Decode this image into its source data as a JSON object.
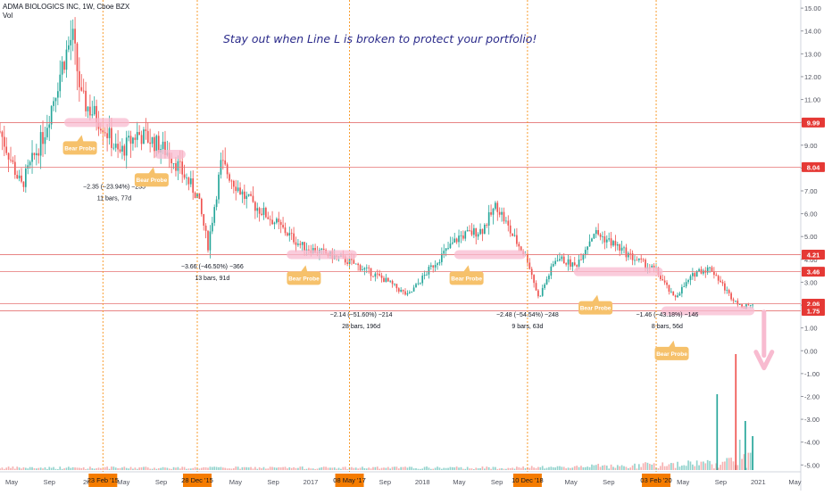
{
  "header": {
    "symbol_line": "ADMA BIOLOGICS INC, 1W, Cboe BZX",
    "vol_label": "Vol"
  },
  "annotation": "Stay out when Line L is broken to protect your portfolio!",
  "colors": {
    "up": "#26a69a",
    "down": "#ef5350",
    "hline": "#e57373",
    "vline": "#f7931a",
    "zone": "#f8bbd0",
    "tag": "#f6c16b",
    "date_tag": "#f57c00",
    "text": "#131722"
  },
  "chart_data": {
    "type": "candlestick",
    "title": "",
    "y_axis": {
      "min": -5.3,
      "max": 15.2,
      "ticks": [
        "15.00",
        "14.00",
        "13.00",
        "12.00",
        "11.00",
        "10.00",
        "9.00",
        "8.00",
        "7.00",
        "6.00",
        "5.00",
        "4.00",
        "3.00",
        "2.00",
        "1.00",
        "0.00",
        "-1.00",
        "-2.00",
        "-3.00",
        "-4.00",
        "-5.00"
      ]
    },
    "x_axis": {
      "start": "2014-03-24",
      "end": "2021-05-20",
      "ticks": [
        {
          "label": "May",
          "date": "2014-05-01"
        },
        {
          "label": "Sep",
          "date": "2014-09-01"
        },
        {
          "label": "20",
          "date": "2015-01-01"
        },
        {
          "label": "May",
          "date": "2015-05-01"
        },
        {
          "label": "Sep",
          "date": "2015-09-01"
        },
        {
          "label": "May",
          "date": "2016-05-01"
        },
        {
          "label": "Sep",
          "date": "2016-09-01"
        },
        {
          "label": "2017",
          "date": "2017-01-01"
        },
        {
          "label": "Sep",
          "date": "2017-09-01"
        },
        {
          "label": "2018",
          "date": "2018-01-01"
        },
        {
          "label": "May",
          "date": "2018-05-01"
        },
        {
          "label": "Sep",
          "date": "2018-09-01"
        },
        {
          "label": "May",
          "date": "2019-05-01"
        },
        {
          "label": "Sep",
          "date": "2019-09-01"
        },
        {
          "label": "May",
          "date": "2020-05-01"
        },
        {
          "label": "Sep",
          "date": "2020-09-01"
        },
        {
          "label": "2021",
          "date": "2021-01-01"
        },
        {
          "label": "May",
          "date": "2021-05-01"
        }
      ],
      "date_tags": [
        {
          "label": "23 Feb '15",
          "date": "2015-02-23"
        },
        {
          "label": "28 Dec '15",
          "date": "2015-12-28"
        },
        {
          "label": "08 May '17",
          "date": "2017-05-08"
        },
        {
          "label": "10 Dec '18",
          "date": "2018-12-10"
        },
        {
          "label": "03 Feb '20",
          "date": "2020-02-03"
        }
      ]
    },
    "price_levels": [
      {
        "label": "9.99",
        "value": 9.99
      },
      {
        "label": "8.04",
        "value": 8.04
      },
      {
        "label": "4.21",
        "value": 4.21
      },
      {
        "label": "3.46",
        "value": 3.46
      },
      {
        "label": "2.06",
        "value": 2.06
      },
      {
        "label": "1.75",
        "value": 1.75
      }
    ],
    "series": [
      {
        "name": "",
        "close_path": [
          {
            "date": "2014-03-24",
            "value": 9.6
          },
          {
            "date": "2014-06-01",
            "value": 7.2
          },
          {
            "date": "2014-08-15",
            "value": 9.5
          },
          {
            "date": "2014-10-15",
            "value": 12.6
          },
          {
            "date": "2014-11-15",
            "value": 13.8
          },
          {
            "date": "2014-12-15",
            "value": 11.0
          },
          {
            "date": "2015-02-23",
            "value": 9.9
          },
          {
            "date": "2015-04-15",
            "value": 8.6
          },
          {
            "date": "2015-06-15",
            "value": 9.5
          },
          {
            "date": "2015-08-01",
            "value": 9.2
          },
          {
            "date": "2015-10-01",
            "value": 8.6
          },
          {
            "date": "2015-12-28",
            "value": 6.8
          },
          {
            "date": "2016-02-01",
            "value": 4.6
          },
          {
            "date": "2016-03-15",
            "value": 8.2
          },
          {
            "date": "2016-06-01",
            "value": 6.7
          },
          {
            "date": "2016-09-01",
            "value": 5.7
          },
          {
            "date": "2016-12-01",
            "value": 4.6
          },
          {
            "date": "2017-05-08",
            "value": 3.9
          },
          {
            "date": "2017-09-01",
            "value": 3.1
          },
          {
            "date": "2017-11-15",
            "value": 2.4
          },
          {
            "date": "2018-02-01",
            "value": 3.7
          },
          {
            "date": "2018-05-01",
            "value": 5.0
          },
          {
            "date": "2018-07-15",
            "value": 5.3
          },
          {
            "date": "2018-09-01",
            "value": 6.4
          },
          {
            "date": "2018-10-15",
            "value": 5.2
          },
          {
            "date": "2018-12-10",
            "value": 4.0
          },
          {
            "date": "2019-01-15",
            "value": 2.3
          },
          {
            "date": "2019-03-15",
            "value": 4.1
          },
          {
            "date": "2019-05-15",
            "value": 3.7
          },
          {
            "date": "2019-07-15",
            "value": 5.2
          },
          {
            "date": "2019-09-15",
            "value": 4.7
          },
          {
            "date": "2019-11-15",
            "value": 4.1
          },
          {
            "date": "2020-02-03",
            "value": 3.5
          },
          {
            "date": "2020-04-01",
            "value": 2.3
          },
          {
            "date": "2020-06-15",
            "value": 3.5
          },
          {
            "date": "2020-08-01",
            "value": 3.6
          },
          {
            "date": "2020-10-01",
            "value": 2.4
          },
          {
            "date": "2020-11-15",
            "value": 1.9
          },
          {
            "date": "2020-12-20",
            "value": 2.1
          }
        ]
      }
    ],
    "bear_probes": [
      {
        "label": "Bear Probe",
        "date": "2014-12-10",
        "value": 8.9
      },
      {
        "label": "Bear Probe",
        "date": "2015-08-01",
        "value": 7.5
      },
      {
        "label": "Bear Probe",
        "date": "2016-12-10",
        "value": 3.2
      },
      {
        "label": "Bear Probe",
        "date": "2018-05-25",
        "value": 3.2
      },
      {
        "label": "Bear Probe",
        "date": "2019-07-20",
        "value": 1.9
      },
      {
        "label": "Bear Probe",
        "date": "2020-03-25",
        "value": -0.1
      }
    ],
    "zones": [
      {
        "from": "2014-10-20",
        "to": "2015-05-20",
        "value": 9.99
      },
      {
        "from": "2015-08-10",
        "to": "2015-11-20",
        "value": 8.6
      },
      {
        "from": "2016-10-15",
        "to": "2017-06-01",
        "value": 4.21
      },
      {
        "from": "2018-04-15",
        "to": "2018-12-05",
        "value": 4.21
      },
      {
        "from": "2019-05-10",
        "to": "2020-02-25",
        "value": 3.46
      },
      {
        "from": "2020-02-20",
        "to": "2020-12-20",
        "value": 1.75
      }
    ],
    "measurements": [
      {
        "line1": "−2.35 (−23.94%) −235",
        "line2": "11 bars, 77d",
        "date": "2015-04-01",
        "value": 7.1
      },
      {
        "line1": "−3.66 (−46.50%) −366",
        "line2": "13 bars, 91d",
        "date": "2016-02-15",
        "value": 3.6
      },
      {
        "line1": "−2.14 (−51.60%) −214",
        "line2": "28 bars, 196d",
        "date": "2017-06-15",
        "value": 1.5
      },
      {
        "line1": "−2.48 (−54.54%) −248",
        "line2": "9 bars, 63d",
        "date": "2018-12-10",
        "value": 1.5
      },
      {
        "line1": "−1.46 (−43.18%) −146",
        "line2": "8 bars, 56d",
        "date": "2020-03-10",
        "value": 1.5
      }
    ],
    "arrow": {
      "date": "2021-01-20",
      "from_value": 1.7,
      "to_value": -0.6
    }
  }
}
